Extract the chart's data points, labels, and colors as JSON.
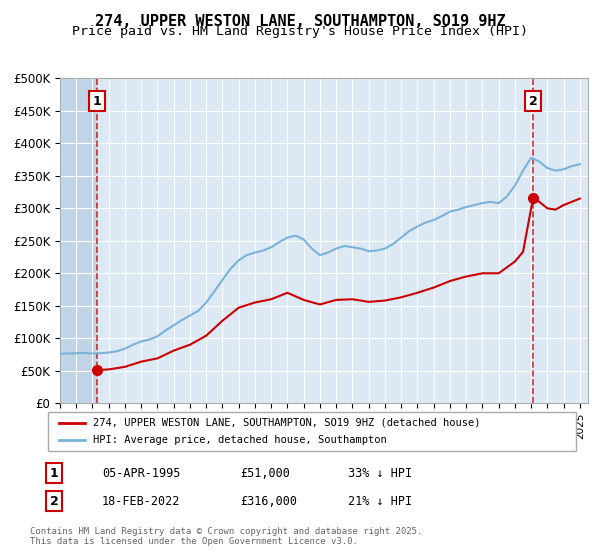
{
  "title": "274, UPPER WESTON LANE, SOUTHAMPTON, SO19 9HZ",
  "subtitle": "Price paid vs. HM Land Registry's House Price Index (HPI)",
  "xlabel": "",
  "ylabel": "",
  "ylim": [
    0,
    500000
  ],
  "yticks": [
    0,
    50000,
    100000,
    150000,
    200000,
    250000,
    300000,
    350000,
    400000,
    450000,
    500000
  ],
  "ytick_labels": [
    "£0",
    "£50K",
    "£100K",
    "£150K",
    "£200K",
    "£250K",
    "£300K",
    "£350K",
    "£400K",
    "£450K",
    "£500K"
  ],
  "xlim_start": 1993.0,
  "xlim_end": 2025.5,
  "bg_color": "#dce9f5",
  "hatch_color": "#c0d4e8",
  "grid_color": "#ffffff",
  "sale1_x": 1995.27,
  "sale1_y": 51000,
  "sale2_x": 2022.12,
  "sale2_y": 316000,
  "sale1_label": "1",
  "sale2_label": "2",
  "red_color": "#cc0000",
  "blue_color": "#7ab3d9",
  "annotation_fontsize": 9,
  "legend_label_red": "274, UPPER WESTON LANE, SOUTHAMPTON, SO19 9HZ (detached house)",
  "legend_label_blue": "HPI: Average price, detached house, Southampton",
  "footer_line1": "Contains HM Land Registry data © Crown copyright and database right 2025.",
  "footer_line2": "This data is licensed under the Open Government Licence v3.0.",
  "table_row1": [
    "1",
    "05-APR-1995",
    "£51,000",
    "33% ↓ HPI"
  ],
  "table_row2": [
    "2",
    "18-FEB-2022",
    "£316,000",
    "21% ↓ HPI"
  ]
}
